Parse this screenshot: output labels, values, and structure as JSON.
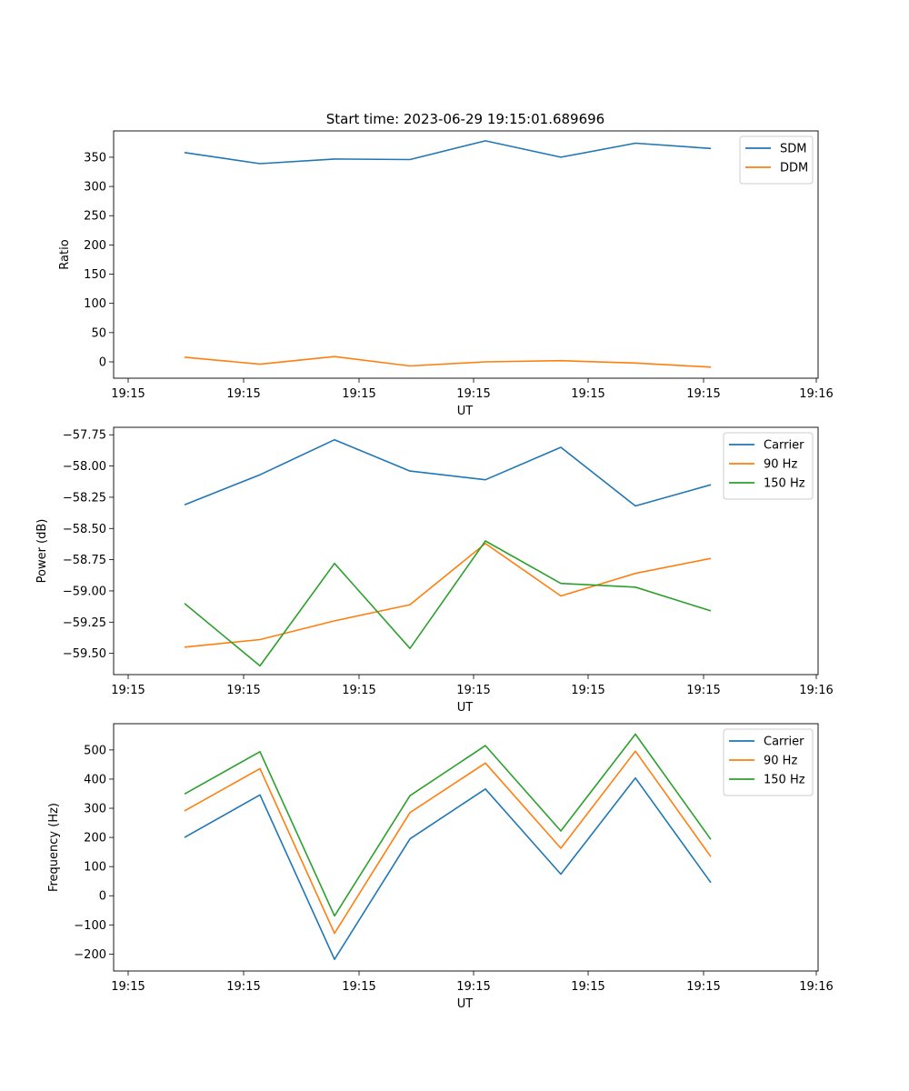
{
  "figure_title": "Start time: 2023-06-29 19:15:01.689696",
  "chart_data": [
    {
      "type": "line",
      "xlabel": "UT",
      "ylabel": "Ratio",
      "x_tick_labels": [
        "19:15",
        "19:15",
        "19:15",
        "19:15",
        "19:15",
        "19:15",
        "19:16"
      ],
      "ylim": [
        -28,
        395
      ],
      "y_ticks": [
        0,
        50,
        100,
        150,
        200,
        250,
        300,
        350
      ],
      "legend_position": "top-right",
      "series": [
        {
          "name": "SDM",
          "color": "#1f77b4",
          "values": [
            358,
            339,
            347,
            346,
            378,
            350,
            374,
            365
          ]
        },
        {
          "name": "DDM",
          "color": "#ff7f0e",
          "values": [
            8,
            -4,
            9,
            -7,
            0,
            2,
            -2,
            -9
          ]
        }
      ]
    },
    {
      "type": "line",
      "xlabel": "UT",
      "ylabel": "Power (dB)",
      "x_tick_labels": [
        "19:15",
        "19:15",
        "19:15",
        "19:15",
        "19:15",
        "19:15",
        "19:16"
      ],
      "ylim": [
        -59.67,
        -57.69
      ],
      "y_ticks": [
        -59.5,
        -59.25,
        -59.0,
        -58.75,
        -58.5,
        -58.25,
        -58.0,
        -57.75
      ],
      "y_tick_labels": [
        "−59.50",
        "−59.25",
        "−59.00",
        "−58.75",
        "−58.50",
        "−58.25",
        "−58.00",
        "−57.75"
      ],
      "legend_position": "top-right",
      "series": [
        {
          "name": "Carrier",
          "color": "#1f77b4",
          "values": [
            -58.31,
            -58.07,
            -57.79,
            -58.04,
            -58.11,
            -57.85,
            -58.32,
            -58.15
          ]
        },
        {
          "name": "90 Hz",
          "color": "#ff7f0e",
          "values": [
            -59.45,
            -59.39,
            -59.24,
            -59.11,
            -58.62,
            -59.04,
            -58.86,
            -58.74
          ]
        },
        {
          "name": "150 Hz",
          "color": "#2ca02c",
          "values": [
            -59.1,
            -59.6,
            -58.78,
            -59.46,
            -58.6,
            -58.94,
            -58.97,
            -59.16
          ]
        }
      ]
    },
    {
      "type": "line",
      "xlabel": "UT",
      "ylabel": "Frequency (Hz)",
      "x_tick_labels": [
        "19:15",
        "19:15",
        "19:15",
        "19:15",
        "19:15",
        "19:15",
        "19:16"
      ],
      "ylim": [
        -258,
        590
      ],
      "y_ticks": [
        -200,
        -100,
        0,
        100,
        200,
        300,
        400,
        500
      ],
      "y_tick_labels": [
        "−200",
        "−100",
        "0",
        "100",
        "200",
        "300",
        "400",
        "500"
      ],
      "legend_position": "top-right",
      "series": [
        {
          "name": "Carrier",
          "color": "#1f77b4",
          "values": [
            200,
            346,
            -218,
            195,
            366,
            74,
            404,
            45
          ]
        },
        {
          "name": "90 Hz",
          "color": "#ff7f0e",
          "values": [
            291,
            436,
            -129,
            285,
            455,
            163,
            496,
            134
          ]
        },
        {
          "name": "150 Hz",
          "color": "#2ca02c",
          "values": [
            349,
            494,
            -69,
            343,
            515,
            222,
            554,
            193
          ]
        }
      ]
    }
  ]
}
